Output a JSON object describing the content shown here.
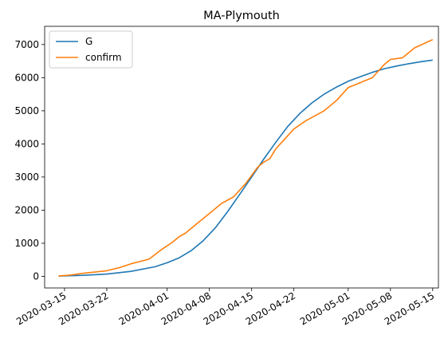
{
  "chart_data": {
    "type": "line",
    "title": "MA-Plymouth",
    "xlabel": "",
    "ylabel": "",
    "x_type": "date",
    "xlim": [
      "2020-03-13",
      "2020-05-15"
    ],
    "ylim": [
      -350,
      7550
    ],
    "x_ticks": [
      "2020-03-15",
      "2020-03-22",
      "2020-04-01",
      "2020-04-08",
      "2020-04-15",
      "2020-04-22",
      "2020-05-01",
      "2020-05-08",
      "2020-05-15"
    ],
    "y_ticks": [
      0,
      1000,
      2000,
      3000,
      4000,
      5000,
      6000,
      7000
    ],
    "legend_position": "top-left",
    "grid": false,
    "series": [
      {
        "name": "G",
        "color": "#1f77b4",
        "x": [
          "2020-03-14",
          "2020-03-18",
          "2020-03-22",
          "2020-03-26",
          "2020-03-30",
          "2020-04-01",
          "2020-04-03",
          "2020-04-05",
          "2020-04-07",
          "2020-04-09",
          "2020-04-11",
          "2020-04-13",
          "2020-04-15",
          "2020-04-17",
          "2020-04-19",
          "2020-04-21",
          "2020-04-23",
          "2020-04-25",
          "2020-04-27",
          "2020-04-29",
          "2020-05-01",
          "2020-05-03",
          "2020-05-05",
          "2020-05-07",
          "2020-05-09",
          "2020-05-11",
          "2020-05-13",
          "2020-05-15"
        ],
        "values": [
          10,
          30,
          70,
          150,
          290,
          410,
          560,
          780,
          1080,
          1470,
          1950,
          2470,
          3000,
          3540,
          4050,
          4530,
          4920,
          5240,
          5500,
          5710,
          5890,
          6030,
          6160,
          6270,
          6350,
          6420,
          6480,
          6530
        ]
      },
      {
        "name": "confirm",
        "color": "#ff7f0e",
        "x": [
          "2020-03-14",
          "2020-03-16",
          "2020-03-18",
          "2020-03-20",
          "2020-03-22",
          "2020-03-24",
          "2020-03-26",
          "2020-03-29",
          "2020-03-31",
          "2020-04-02",
          "2020-04-03",
          "2020-04-04",
          "2020-04-06",
          "2020-04-08",
          "2020-04-09",
          "2020-04-10",
          "2020-04-11",
          "2020-04-12",
          "2020-04-14",
          "2020-04-16",
          "2020-04-17",
          "2020-04-18",
          "2020-04-19",
          "2020-04-20",
          "2020-04-22",
          "2020-04-24",
          "2020-04-25",
          "2020-04-27",
          "2020-04-29",
          "2020-05-01",
          "2020-05-03",
          "2020-05-05",
          "2020-05-07",
          "2020-05-08",
          "2020-05-10",
          "2020-05-12",
          "2020-05-15"
        ],
        "values": [
          10,
          40,
          90,
          130,
          170,
          260,
          380,
          520,
          800,
          1050,
          1200,
          1300,
          1600,
          1900,
          2050,
          2200,
          2300,
          2400,
          2800,
          3300,
          3450,
          3550,
          3850,
          4050,
          4450,
          4700,
          4800,
          5000,
          5300,
          5700,
          5850,
          6000,
          6400,
          6550,
          6600,
          6900,
          7150
        ]
      }
    ]
  }
}
